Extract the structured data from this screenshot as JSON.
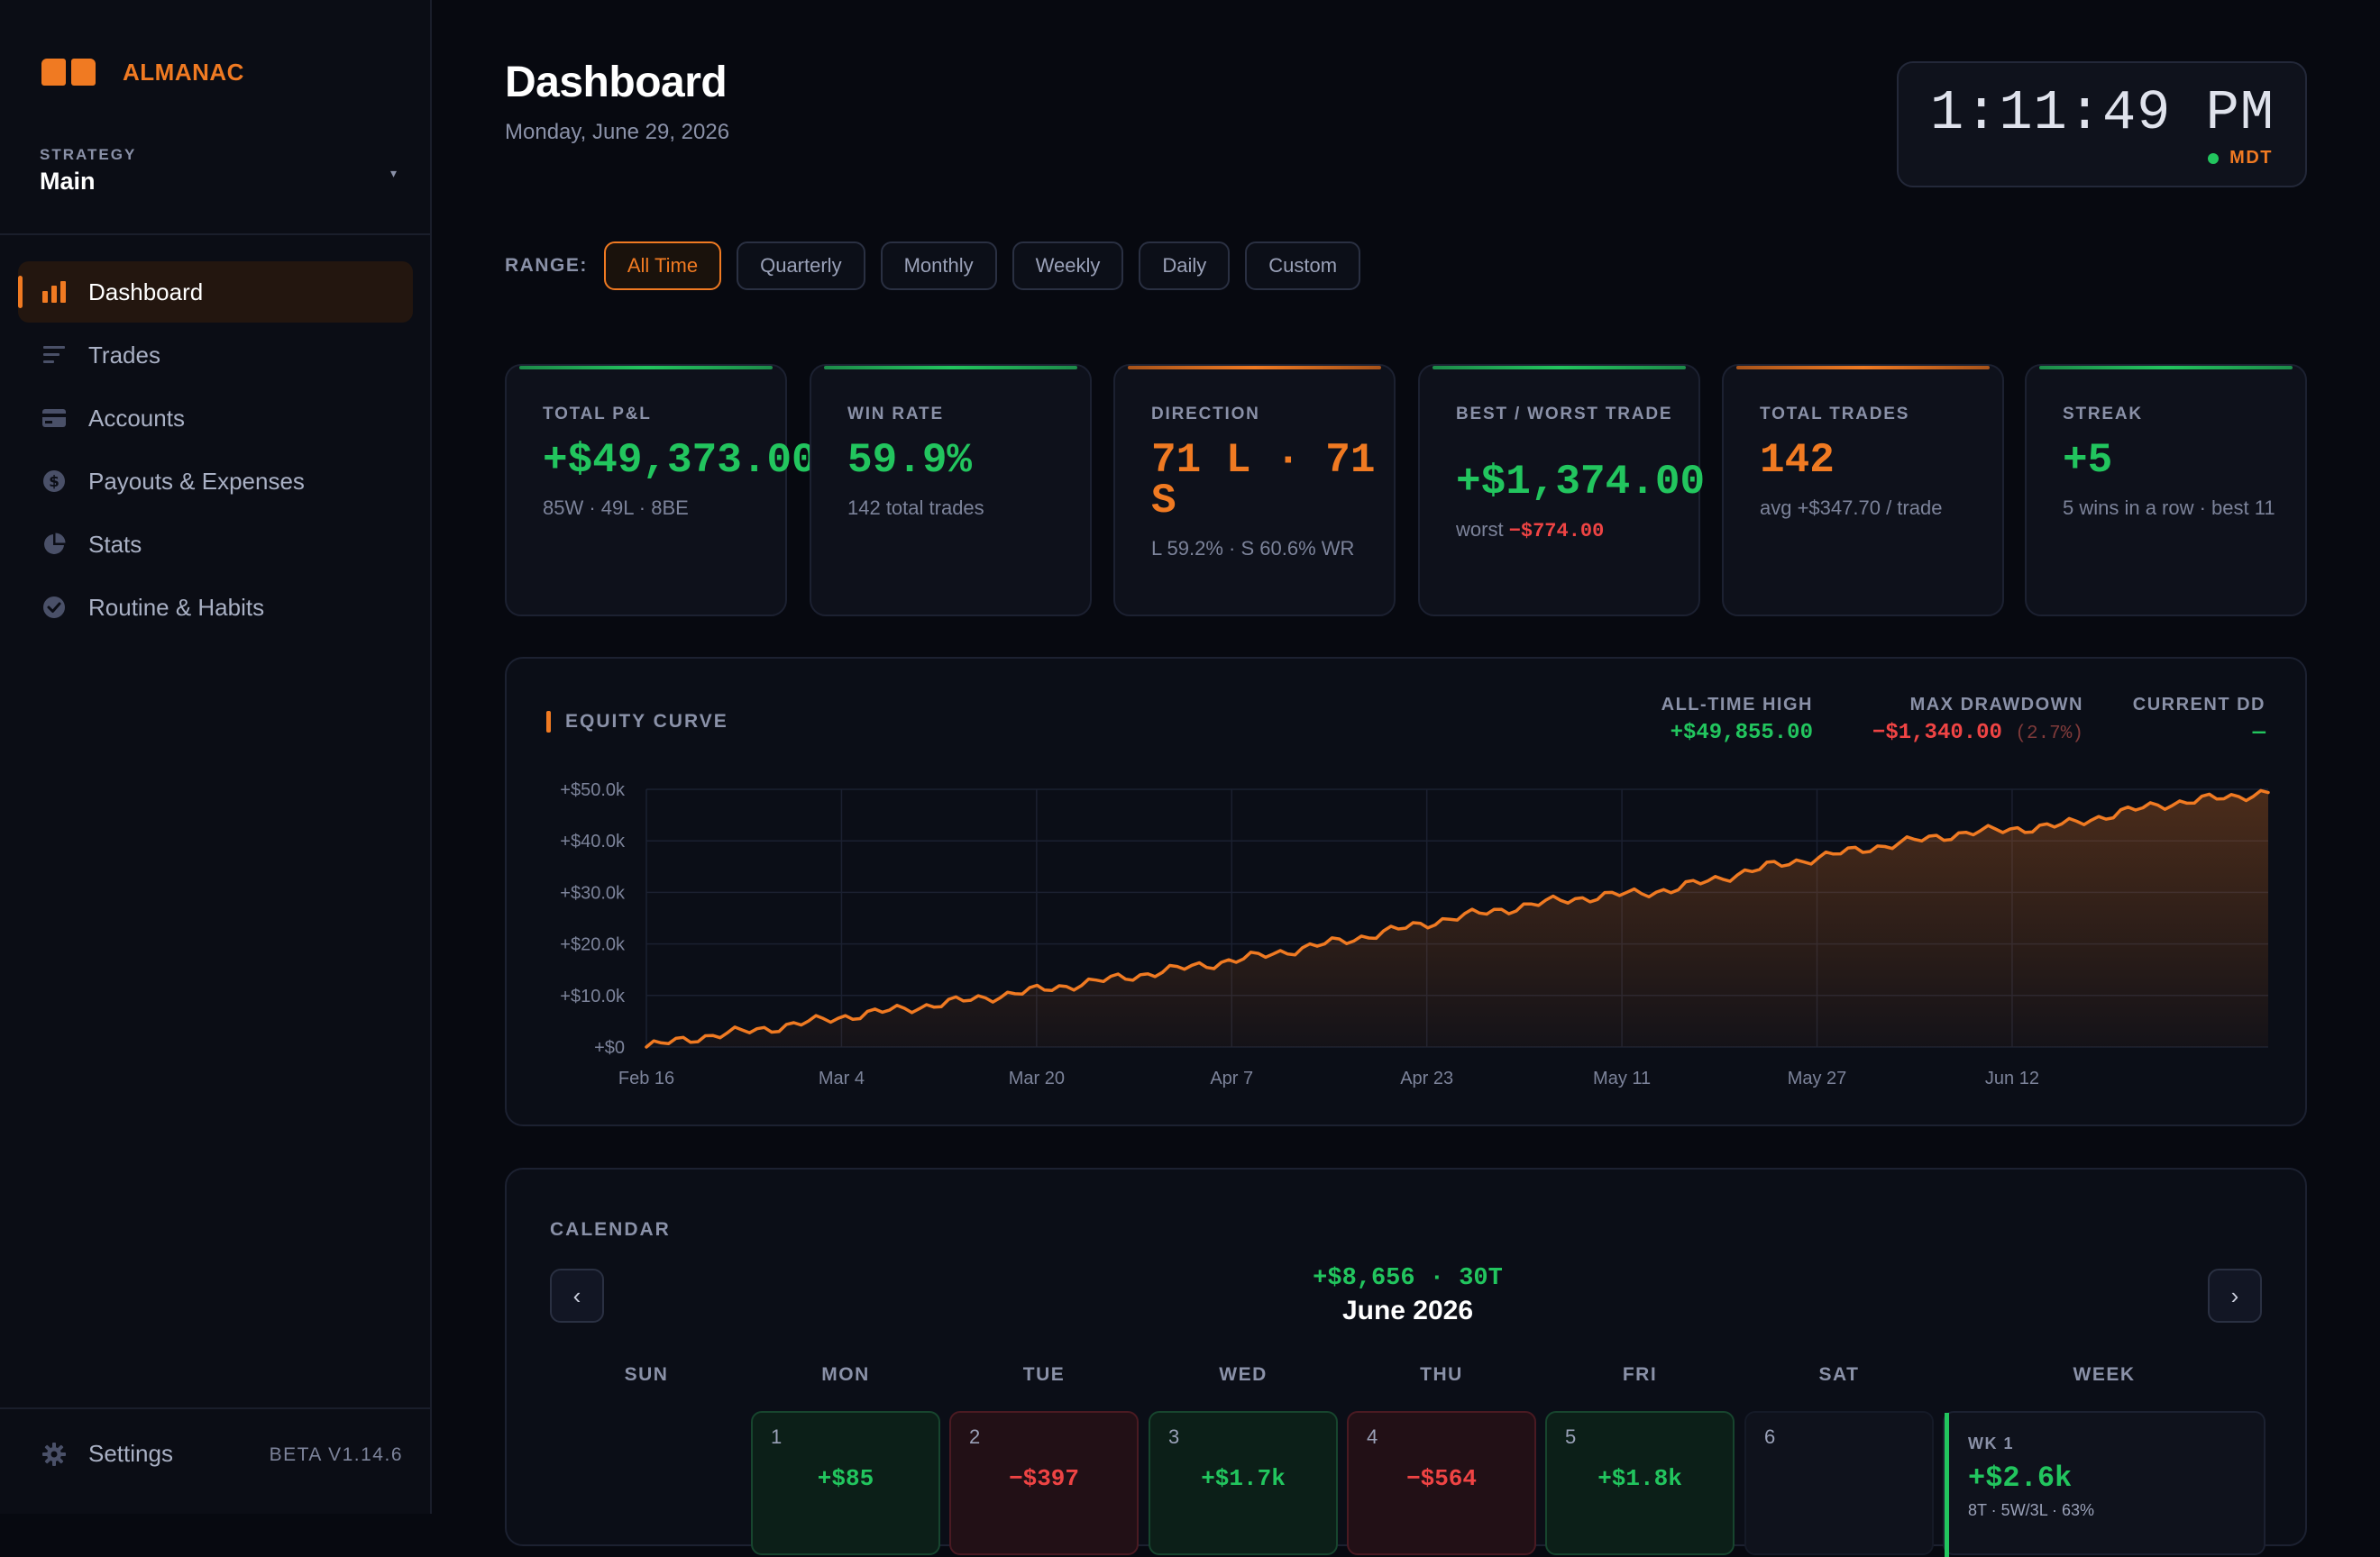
{
  "sidebar": {
    "brand": "ALMANAC",
    "strategy_label": "STRATEGY",
    "strategy_value": "Main",
    "items": [
      {
        "label": "Dashboard",
        "icon": "bar-chart-icon"
      },
      {
        "label": "Trades",
        "icon": "list-icon"
      },
      {
        "label": "Accounts",
        "icon": "card-icon"
      },
      {
        "label": "Payouts & Expenses",
        "icon": "dollar-circle-icon"
      },
      {
        "label": "Stats",
        "icon": "pie-chart-icon"
      },
      {
        "label": "Routine & Habits",
        "icon": "check-circle-icon"
      }
    ],
    "settings_label": "Settings",
    "version": "BETA V1.14.6"
  },
  "header": {
    "title": "Dashboard",
    "date": "Monday, June 29, 2026"
  },
  "clock": {
    "time": "1:11:49 PM",
    "tz": "MDT"
  },
  "range": {
    "label": "RANGE:",
    "options": [
      "All Time",
      "Quarterly",
      "Monthly",
      "Weekly",
      "Daily",
      "Custom"
    ],
    "selected": "All Time"
  },
  "cards": [
    {
      "label": "TOTAL P&L",
      "value": "+$49,373.00",
      "sub": "85W · 49L · 8BE"
    },
    {
      "label": "WIN RATE",
      "value": "59.9%",
      "sub": "142 total trades"
    },
    {
      "label": "DIRECTION",
      "value_line1": "71 L · 71",
      "value_line2": "S",
      "sub": "L 59.2% · S 60.6% WR"
    },
    {
      "label": "BEST / WORST TRADE",
      "value": "+$1,374.00",
      "sub_prefix": "worst ",
      "sub_value": "−$774.00"
    },
    {
      "label": "TOTAL TRADES",
      "value": "142",
      "sub": "avg +$347.70 / trade"
    },
    {
      "label": "STREAK",
      "value": "+5",
      "sub": "5 wins in a row · best 11"
    }
  ],
  "equity": {
    "title": "EQUITY CURVE",
    "ath_label": "ALL-TIME HIGH",
    "ath_value": "+$49,855.00",
    "mdd_label": "MAX DRAWDOWN",
    "mdd_value": "−$1,340.00",
    "mdd_pct": "(2.7%)",
    "cdd_label": "CURRENT DD",
    "cdd_value": "—"
  },
  "chart_data": {
    "type": "area",
    "title": "EQUITY CURVE",
    "xlabel": "",
    "ylabel": "",
    "x_ticks": [
      "Feb 16",
      "Mar 4",
      "Mar 20",
      "Apr 7",
      "Apr 23",
      "May 11",
      "May 27",
      "Jun 12"
    ],
    "y_ticks": [
      "+$0",
      "+$10.0k",
      "+$20.0k",
      "+$30.0k",
      "+$40.0k",
      "+$50.0k"
    ],
    "ylim": [
      0,
      50000
    ],
    "x_range": [
      "2026-02-16",
      "2026-06-29"
    ],
    "series": [
      {
        "x": [
          "2026-02-16",
          "2026-02-20",
          "2026-02-26",
          "2026-03-04",
          "2026-03-11",
          "2026-03-20",
          "2026-03-28",
          "2026-04-07",
          "2026-04-15",
          "2026-04-23",
          "2026-05-02",
          "2026-05-11",
          "2026-05-19",
          "2026-05-27",
          "2026-06-04",
          "2026-06-12",
          "2026-06-20",
          "2026-06-29"
        ],
        "values": [
          0,
          1800,
          3600,
          5800,
          8000,
          11000,
          13800,
          17500,
          21000,
          25000,
          28500,
          30500,
          35000,
          38500,
          41500,
          43000,
          47000,
          49373
        ]
      }
    ],
    "grid": true,
    "colors": {
      "line": "#f07a22",
      "fill": "#f07a22"
    }
  },
  "calendar": {
    "title": "CALENDAR",
    "summary": "+$8,656 · 30T",
    "month": "June 2026",
    "prev": "‹",
    "next": "›",
    "dow": [
      "SUN",
      "MON",
      "TUE",
      "WED",
      "THU",
      "FRI",
      "SAT",
      "WEEK"
    ],
    "days": [
      {
        "num": "1",
        "pnl": "+$85",
        "kind": "win"
      },
      {
        "num": "2",
        "pnl": "−$397",
        "kind": "loss"
      },
      {
        "num": "3",
        "pnl": "+$1.7k",
        "kind": "win"
      },
      {
        "num": "4",
        "pnl": "−$564",
        "kind": "loss"
      },
      {
        "num": "5",
        "pnl": "+$1.8k",
        "kind": "win"
      },
      {
        "num": "6",
        "pnl": "",
        "kind": "empty"
      }
    ],
    "week": {
      "label": "WK 1",
      "value": "+$2.6k",
      "sub": "8T · 5W/3L · 63%"
    }
  }
}
